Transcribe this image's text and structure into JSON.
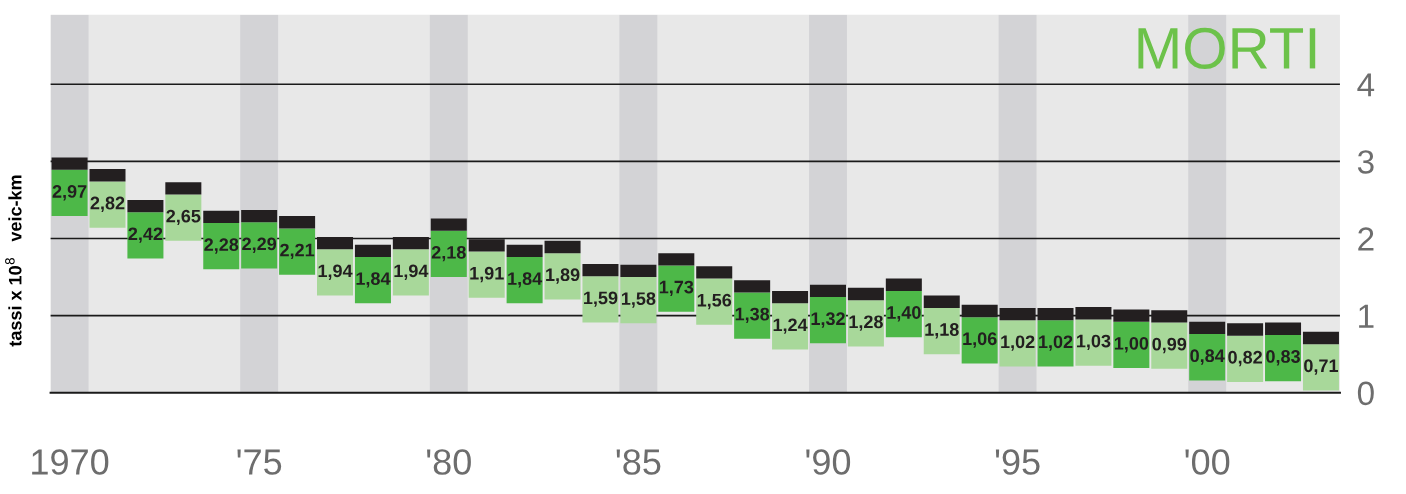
{
  "chart_data": {
    "type": "scatter",
    "title": "MORTI",
    "ylabel": "tassi x 10$^{8}$   veic-km",
    "x": [
      1970,
      1971,
      1972,
      1973,
      1974,
      1975,
      1976,
      1977,
      1978,
      1979,
      1980,
      1981,
      1982,
      1983,
      1984,
      1985,
      1986,
      1987,
      1988,
      1989,
      1990,
      1991,
      1992,
      1993,
      1994,
      1995,
      1996,
      1997,
      1998,
      1999,
      2000,
      2001,
      2002,
      2003
    ],
    "values": [
      2.97,
      2.82,
      2.42,
      2.65,
      2.28,
      2.29,
      2.21,
      1.94,
      1.84,
      1.94,
      2.18,
      1.91,
      1.84,
      1.89,
      1.59,
      1.58,
      1.73,
      1.56,
      1.38,
      1.24,
      1.32,
      1.28,
      1.4,
      1.18,
      1.06,
      1.02,
      1.02,
      1.03,
      1.0,
      0.99,
      0.84,
      0.82,
      0.83,
      0.71
    ],
    "value_labels": [
      "2,97",
      "2,82",
      "2,42",
      "2,65",
      "2,28",
      "2,29",
      "2,21",
      "1,94",
      "1,84",
      "1,94",
      "2,18",
      "1,91",
      "1,84",
      "1,89",
      "1,59",
      "1,58",
      "1,73",
      "1,56",
      "1,38",
      "1,24",
      "1,32",
      "1,28",
      "1,40",
      "1,18",
      "1,06",
      "1,02",
      "1,02",
      "1,03",
      "1,00",
      "0,99",
      "0,84",
      "0,82",
      "0,83",
      "0,71"
    ],
    "color": "#231f20",
    "xlim": [
      1969.5,
      2003.5
    ],
    "xticks": [
      {
        "value": 1970,
        "label": "1970"
      },
      {
        "value": 1975,
        "label": "'75"
      },
      {
        "value": 1980,
        "label": "'80"
      },
      {
        "value": 1985,
        "label": "'85"
      },
      {
        "value": 1990,
        "label": "'90"
      },
      {
        "value": 1995,
        "label": "'95"
      },
      {
        "value": 2000,
        "label": "'00"
      }
    ],
    "ylim": [
      0,
      4.9
    ],
    "yticks": [
      0,
      1,
      2,
      3,
      4
    ],
    "grid": "y",
    "bands": [
      {
        "axis": "x",
        "from": 1969.5,
        "to": 1970.5,
        "color": "#d3d3d6"
      },
      {
        "axis": "x",
        "from": 1974.5,
        "to": 1975.5,
        "color": "#d3d3d6"
      },
      {
        "axis": "x",
        "from": 1979.5,
        "to": 1980.5,
        "color": "#d3d3d6"
      },
      {
        "axis": "x",
        "from": 1984.5,
        "to": 1985.5,
        "color": "#d3d3d6"
      },
      {
        "axis": "x",
        "from": 1989.5,
        "to": 1990.5,
        "color": "#d3d3d6"
      },
      {
        "axis": "x",
        "from": 1994.5,
        "to": 1995.5,
        "color": "#d3d3d6"
      },
      {
        "axis": "x",
        "from": 1999.5,
        "to": 2000.5,
        "color": "#d3d3d6"
      }
    ]
  }
}
